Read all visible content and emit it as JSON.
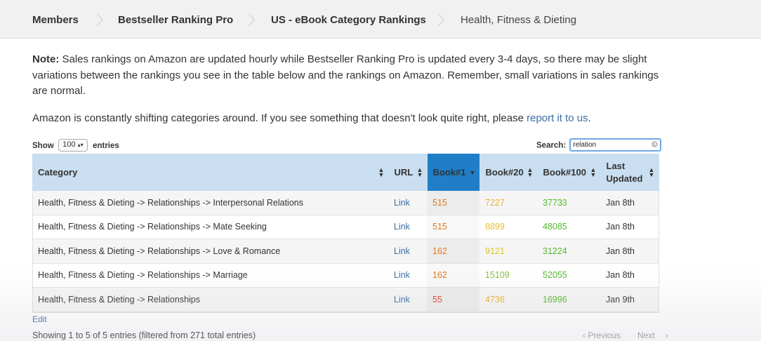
{
  "breadcrumb": [
    {
      "label": "Members"
    },
    {
      "label": "Bestseller Ranking Pro"
    },
    {
      "label": "US - eBook Category Rankings"
    },
    {
      "label": "Health, Fitness & Dieting"
    }
  ],
  "note": {
    "label": "Note:",
    "text": " Sales rankings on Amazon are updated hourly while Bestseller Ranking Pro is updated every 3-4 days, so there may be slight variations between the rankings you see in the table below and the rankings on Amazon. Remember, small variations in sales rankings are normal."
  },
  "info": {
    "text": "Amazon is constantly shifting categories around. If you see something that doesn't look quite right, please ",
    "link": "report it to us",
    "end": "."
  },
  "controls": {
    "show_label": "Show",
    "entries_value": "100",
    "entries_label": "entries",
    "search_label": "Search:",
    "search_value": "relation"
  },
  "table": {
    "headers": [
      "Category",
      "URL",
      "Book#1",
      "Book#20",
      "Book#100",
      "Last Updated"
    ],
    "rows": [
      {
        "category": "Health, Fitness & Dieting -> Relationships -> Interpersonal Relations",
        "url": "Link",
        "b1": "515",
        "b20": "7227",
        "b100": "37733",
        "updated": "Jan 8th"
      },
      {
        "category": "Health, Fitness & Dieting -> Relationships -> Mate Seeking",
        "url": "Link",
        "b1": "515",
        "b20": "8899",
        "b100": "48085",
        "updated": "Jan 8th"
      },
      {
        "category": "Health, Fitness & Dieting -> Relationships -> Love & Romance",
        "url": "Link",
        "b1": "162",
        "b20": "9121",
        "b100": "31224",
        "updated": "Jan 8th"
      },
      {
        "category": "Health, Fitness & Dieting -> Relationships -> Marriage",
        "url": "Link",
        "b1": "162",
        "b20": "15109",
        "b100": "52055",
        "updated": "Jan 8th"
      },
      {
        "category": "Health, Fitness & Dieting -> Relationships",
        "url": "Link",
        "b1": "55",
        "b20": "4736",
        "b100": "16996",
        "updated": "Jan 9th"
      }
    ],
    "value_colors": {
      "b1": [
        "#e07a1f",
        "#e07a1f",
        "#e07a1f",
        "#e07a1f",
        "#d9482b"
      ],
      "b20": [
        "#e8b33a",
        "#e8c13e",
        "#d6c52c",
        "#7dc236",
        "#e8b33a"
      ],
      "b100": [
        "#55b82e",
        "#55b82e",
        "#55b82e",
        "#55b82e",
        "#55b82e"
      ]
    }
  },
  "footer": {
    "edit": "Edit",
    "showing": "Showing 1 to 5 of 5 entries (filtered from 271 total entries)",
    "previous": "Previous",
    "next": "Next"
  },
  "colors": {
    "link": "#3a6ea5",
    "header_bg": "#c9def0",
    "sorted_header_bg": "#1f7ec7"
  }
}
